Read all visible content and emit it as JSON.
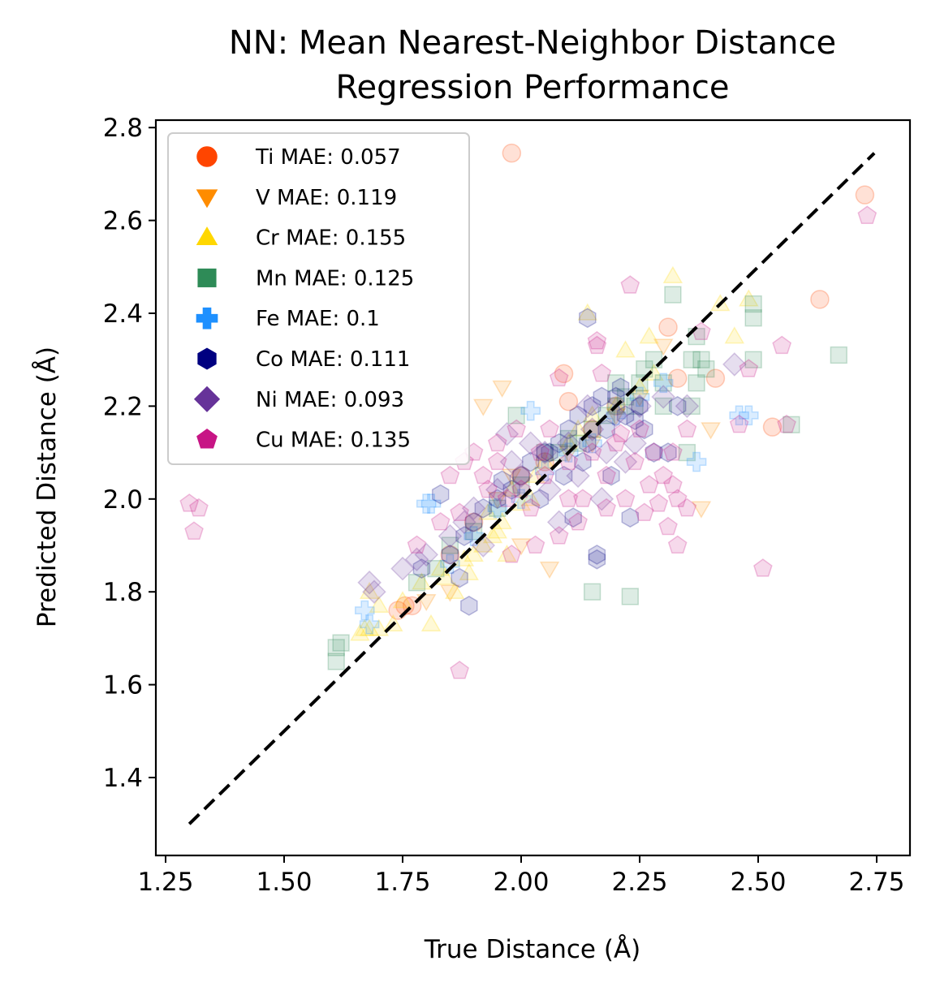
{
  "chart_data": {
    "type": "scatter",
    "title": [
      "NN: Mean Nearest-Neighbor Distance",
      "Regression Performance"
    ],
    "xlabel": "True Distance (Å)",
    "ylabel": "Predicted Distance (Å)",
    "xlim": [
      1.25,
      2.82
    ],
    "ylim": [
      1.23,
      2.82
    ],
    "xticks": [
      "1.25",
      "1.50",
      "1.75",
      "2.00",
      "2.25",
      "2.50",
      "2.75"
    ],
    "yticks": [
      "1.4",
      "1.6",
      "1.8",
      "2.0",
      "2.2",
      "2.4",
      "2.6",
      "2.8"
    ],
    "grid": false,
    "legend_position": "upper-left",
    "reference_line": {
      "style": "dashed",
      "color": "#000000",
      "from": [
        1.3,
        1.3
      ],
      "to": [
        2.745,
        2.745
      ]
    },
    "series": [
      {
        "name": "Ti MAE: 0.057",
        "color": "#ff4500",
        "marker": "circle",
        "points": [
          [
            1.98,
            2.745
          ],
          [
            2.725,
            2.655
          ],
          [
            2.63,
            2.43
          ],
          [
            2.53,
            2.155
          ],
          [
            2.31,
            2.37
          ],
          [
            2.09,
            2.27
          ],
          [
            2.33,
            2.26
          ],
          [
            2.41,
            2.26
          ],
          [
            1.755,
            1.77
          ],
          [
            1.77,
            1.77
          ],
          [
            1.74,
            1.76
          ],
          [
            2.1,
            2.21
          ],
          [
            2.05,
            2.08
          ],
          [
            2.2,
            2.2
          ],
          [
            1.9,
            1.95
          ],
          [
            2.15,
            2.15
          ],
          [
            2.0,
            2.05
          ],
          [
            1.85,
            1.88
          ]
        ]
      },
      {
        "name": "V MAE: 0.119",
        "color": "#ff8c00",
        "marker": "triangle-down",
        "points": [
          [
            2.3,
            2.33
          ],
          [
            2.38,
            1.98
          ],
          [
            2.0,
            1.9
          ],
          [
            1.92,
            2.2
          ],
          [
            2.06,
            1.85
          ],
          [
            1.85,
            1.8
          ],
          [
            2.1,
            2.1
          ],
          [
            2.2,
            2.18
          ],
          [
            1.98,
            2.05
          ],
          [
            2.25,
            2.22
          ],
          [
            1.95,
            2.0
          ],
          [
            2.15,
            2.12
          ],
          [
            1.8,
            1.78
          ],
          [
            1.96,
            2.24
          ],
          [
            2.4,
            2.15
          ]
        ]
      },
      {
        "name": "Cr MAE: 0.155",
        "color": "#ffd700",
        "marker": "triangle-up",
        "points": [
          [
            2.32,
            2.48
          ],
          [
            2.48,
            2.43
          ],
          [
            2.45,
            2.35
          ],
          [
            2.42,
            2.42
          ],
          [
            2.14,
            2.4
          ],
          [
            2.22,
            2.32
          ],
          [
            2.27,
            2.35
          ],
          [
            1.67,
            1.72
          ],
          [
            1.68,
            1.72
          ],
          [
            1.66,
            1.71
          ],
          [
            1.7,
            1.72
          ],
          [
            1.73,
            1.73
          ],
          [
            1.81,
            1.73
          ],
          [
            1.75,
            1.78
          ],
          [
            1.79,
            1.82
          ],
          [
            1.83,
            1.85
          ],
          [
            1.84,
            1.83
          ],
          [
            1.88,
            1.87
          ],
          [
            1.9,
            1.88
          ],
          [
            1.92,
            1.9
          ],
          [
            1.95,
            1.93
          ],
          [
            1.96,
            1.95
          ],
          [
            2.0,
            1.99
          ],
          [
            2.02,
            2.0
          ],
          [
            1.93,
            1.97
          ],
          [
            1.98,
            2.02
          ],
          [
            2.05,
            2.08
          ],
          [
            2.1,
            2.12
          ],
          [
            2.15,
            2.18
          ],
          [
            2.2,
            2.2
          ],
          [
            2.25,
            2.24
          ],
          [
            2.28,
            2.27
          ],
          [
            1.86,
            1.8
          ],
          [
            1.97,
            1.88
          ],
          [
            1.89,
            1.84
          ],
          [
            1.94,
            1.92
          ],
          [
            2.03,
            2.05
          ],
          [
            2.12,
            2.15
          ],
          [
            1.68,
            1.8
          ],
          [
            1.7,
            1.77
          ]
        ]
      },
      {
        "name": "Mn MAE: 0.125",
        "color": "#2e8b57",
        "marker": "square",
        "points": [
          [
            2.32,
            2.44
          ],
          [
            2.36,
            2.3
          ],
          [
            2.49,
            2.42
          ],
          [
            2.49,
            2.39
          ],
          [
            2.49,
            2.3
          ],
          [
            2.67,
            2.31
          ],
          [
            2.57,
            2.16
          ],
          [
            2.39,
            2.28
          ],
          [
            2.37,
            2.35
          ],
          [
            2.38,
            2.3
          ],
          [
            2.37,
            2.25
          ],
          [
            2.35,
            2.1
          ],
          [
            2.23,
            1.79
          ],
          [
            2.15,
            1.8
          ],
          [
            1.62,
            1.69
          ],
          [
            1.61,
            1.68
          ],
          [
            1.61,
            1.65
          ],
          [
            1.99,
            2.18
          ],
          [
            2.05,
            2.1
          ],
          [
            2.1,
            2.13
          ],
          [
            2.15,
            2.15
          ],
          [
            2.2,
            2.2
          ],
          [
            2.25,
            2.25
          ],
          [
            2.3,
            2.25
          ],
          [
            2.28,
            2.3
          ],
          [
            2.22,
            2.22
          ],
          [
            2.18,
            2.18
          ],
          [
            2.12,
            2.12
          ],
          [
            2.08,
            2.1
          ],
          [
            2.0,
            2.03
          ],
          [
            1.95,
            1.98
          ],
          [
            1.9,
            1.93
          ],
          [
            1.85,
            1.9
          ],
          [
            1.82,
            1.85
          ],
          [
            1.78,
            1.82
          ],
          [
            2.26,
            2.28
          ],
          [
            2.24,
            2.2
          ],
          [
            2.2,
            2.25
          ],
          [
            2.3,
            2.2
          ],
          [
            2.36,
            2.2
          ]
        ]
      },
      {
        "name": "Fe MAE: 0.1",
        "color": "#1e90ff",
        "marker": "plus",
        "points": [
          [
            1.8,
            1.99
          ],
          [
            1.81,
            1.99
          ],
          [
            2.02,
            2.19
          ],
          [
            2.46,
            2.18
          ],
          [
            2.48,
            2.18
          ],
          [
            2.37,
            2.08
          ],
          [
            1.68,
            1.73
          ],
          [
            1.67,
            1.76
          ],
          [
            2.1,
            2.1
          ],
          [
            2.15,
            2.12
          ],
          [
            2.2,
            2.18
          ],
          [
            2.25,
            2.22
          ],
          [
            1.95,
            1.98
          ],
          [
            2.0,
            2.0
          ],
          [
            2.05,
            2.06
          ],
          [
            1.9,
            1.92
          ],
          [
            1.85,
            1.86
          ],
          [
            2.3,
            2.25
          ]
        ]
      },
      {
        "name": "Co MAE: 0.111",
        "color": "#000080",
        "marker": "hexagon",
        "points": [
          [
            2.14,
            2.39
          ],
          [
            2.31,
            2.1
          ],
          [
            2.33,
            2.2
          ],
          [
            2.23,
            1.96
          ],
          [
            2.16,
            1.87
          ],
          [
            2.16,
            1.88
          ],
          [
            2.11,
            1.96
          ],
          [
            1.89,
            1.77
          ],
          [
            1.83,
            2.01
          ],
          [
            1.9,
            1.95
          ],
          [
            1.95,
            2.0
          ],
          [
            2.0,
            2.05
          ],
          [
            2.05,
            2.1
          ],
          [
            2.1,
            2.15
          ],
          [
            2.15,
            2.2
          ],
          [
            2.2,
            2.22
          ],
          [
            2.25,
            2.2
          ],
          [
            2.12,
            2.18
          ],
          [
            2.08,
            2.12
          ],
          [
            2.18,
            2.15
          ],
          [
            2.22,
            2.18
          ],
          [
            1.98,
            2.02
          ],
          [
            1.92,
            1.98
          ],
          [
            1.88,
            1.92
          ],
          [
            1.85,
            1.88
          ],
          [
            2.02,
            2.08
          ],
          [
            2.06,
            2.1
          ],
          [
            2.14,
            2.12
          ],
          [
            2.17,
            2.22
          ],
          [
            2.21,
            2.24
          ],
          [
            2.24,
            2.17
          ],
          [
            2.13,
            2.08
          ],
          [
            2.04,
            2.0
          ],
          [
            2.09,
            2.05
          ],
          [
            1.96,
            2.04
          ],
          [
            2.28,
            2.1
          ],
          [
            1.79,
            1.85
          ],
          [
            1.87,
            1.83
          ],
          [
            2.26,
            2.15
          ],
          [
            2.19,
            2.05
          ]
        ]
      },
      {
        "name": "Ni MAE: 0.093",
        "color": "#663399",
        "marker": "diamond",
        "points": [
          [
            2.45,
            2.29
          ],
          [
            1.68,
            1.82
          ],
          [
            1.69,
            1.8
          ],
          [
            1.97,
            2.14
          ],
          [
            1.75,
            1.85
          ],
          [
            1.8,
            1.88
          ],
          [
            1.85,
            1.92
          ],
          [
            1.9,
            1.98
          ],
          [
            1.95,
            2.02
          ],
          [
            2.0,
            2.05
          ],
          [
            2.05,
            2.1
          ],
          [
            2.1,
            2.12
          ],
          [
            2.15,
            2.15
          ],
          [
            2.2,
            2.18
          ],
          [
            2.25,
            2.2
          ],
          [
            2.3,
            2.22
          ],
          [
            2.12,
            2.05
          ],
          [
            2.08,
            1.95
          ],
          [
            2.17,
            2.0
          ],
          [
            2.22,
            2.08
          ],
          [
            1.92,
            1.9
          ],
          [
            1.88,
            1.95
          ],
          [
            2.02,
            2.12
          ],
          [
            2.14,
            2.2
          ],
          [
            2.35,
            2.2
          ],
          [
            1.78,
            1.87
          ],
          [
            2.06,
            2.02
          ],
          [
            2.18,
            2.1
          ],
          [
            1.98,
            2.08
          ],
          [
            2.24,
            2.12
          ]
        ]
      },
      {
        "name": "Cu MAE: 0.135",
        "color": "#c71585",
        "marker": "pentagon",
        "points": [
          [
            2.73,
            2.61
          ],
          [
            1.3,
            1.99
          ],
          [
            1.32,
            1.98
          ],
          [
            1.31,
            1.93
          ],
          [
            2.23,
            2.46
          ],
          [
            2.55,
            2.33
          ],
          [
            2.51,
            1.85
          ],
          [
            1.87,
            1.63
          ],
          [
            2.33,
            1.9
          ],
          [
            2.46,
            2.16
          ],
          [
            2.56,
            2.16
          ],
          [
            2.48,
            2.28
          ],
          [
            2.16,
            2.34
          ],
          [
            2.16,
            2.33
          ],
          [
            2.17,
            2.27
          ],
          [
            2.38,
            2.36
          ],
          [
            2.35,
            1.98
          ],
          [
            2.31,
            1.94
          ],
          [
            2.33,
            2.0
          ],
          [
            2.26,
            1.97
          ],
          [
            2.18,
            1.98
          ],
          [
            2.08,
            2.26
          ],
          [
            1.95,
            2.12
          ],
          [
            1.9,
            2.1
          ],
          [
            1.88,
            2.08
          ],
          [
            1.92,
            2.05
          ],
          [
            1.97,
            2.0
          ],
          [
            2.0,
            2.02
          ],
          [
            2.02,
            1.98
          ],
          [
            2.05,
            2.05
          ],
          [
            2.1,
            2.08
          ],
          [
            2.15,
            2.1
          ],
          [
            2.2,
            2.12
          ],
          [
            2.25,
            2.15
          ],
          [
            2.28,
            2.1
          ],
          [
            2.3,
            2.05
          ],
          [
            2.32,
            2.1
          ],
          [
            2.35,
            2.15
          ],
          [
            2.12,
            1.95
          ],
          [
            2.08,
            1.92
          ],
          [
            2.03,
            1.9
          ],
          [
            1.98,
            1.88
          ],
          [
            1.85,
            2.05
          ],
          [
            1.83,
            1.95
          ],
          [
            1.78,
            1.9
          ],
          [
            1.95,
            2.08
          ],
          [
            2.22,
            2.0
          ],
          [
            2.27,
            2.03
          ],
          [
            2.06,
            2.15
          ],
          [
            1.93,
            2.02
          ],
          [
            2.18,
            2.05
          ],
          [
            2.24,
            2.08
          ],
          [
            2.13,
            2.0
          ],
          [
            2.29,
            1.99
          ],
          [
            2.32,
            2.03
          ],
          [
            2.21,
            2.14
          ],
          [
            1.99,
            2.15
          ],
          [
            2.04,
            2.1
          ],
          [
            1.87,
            1.97
          ],
          [
            2.1,
            2.0
          ]
        ]
      }
    ]
  }
}
